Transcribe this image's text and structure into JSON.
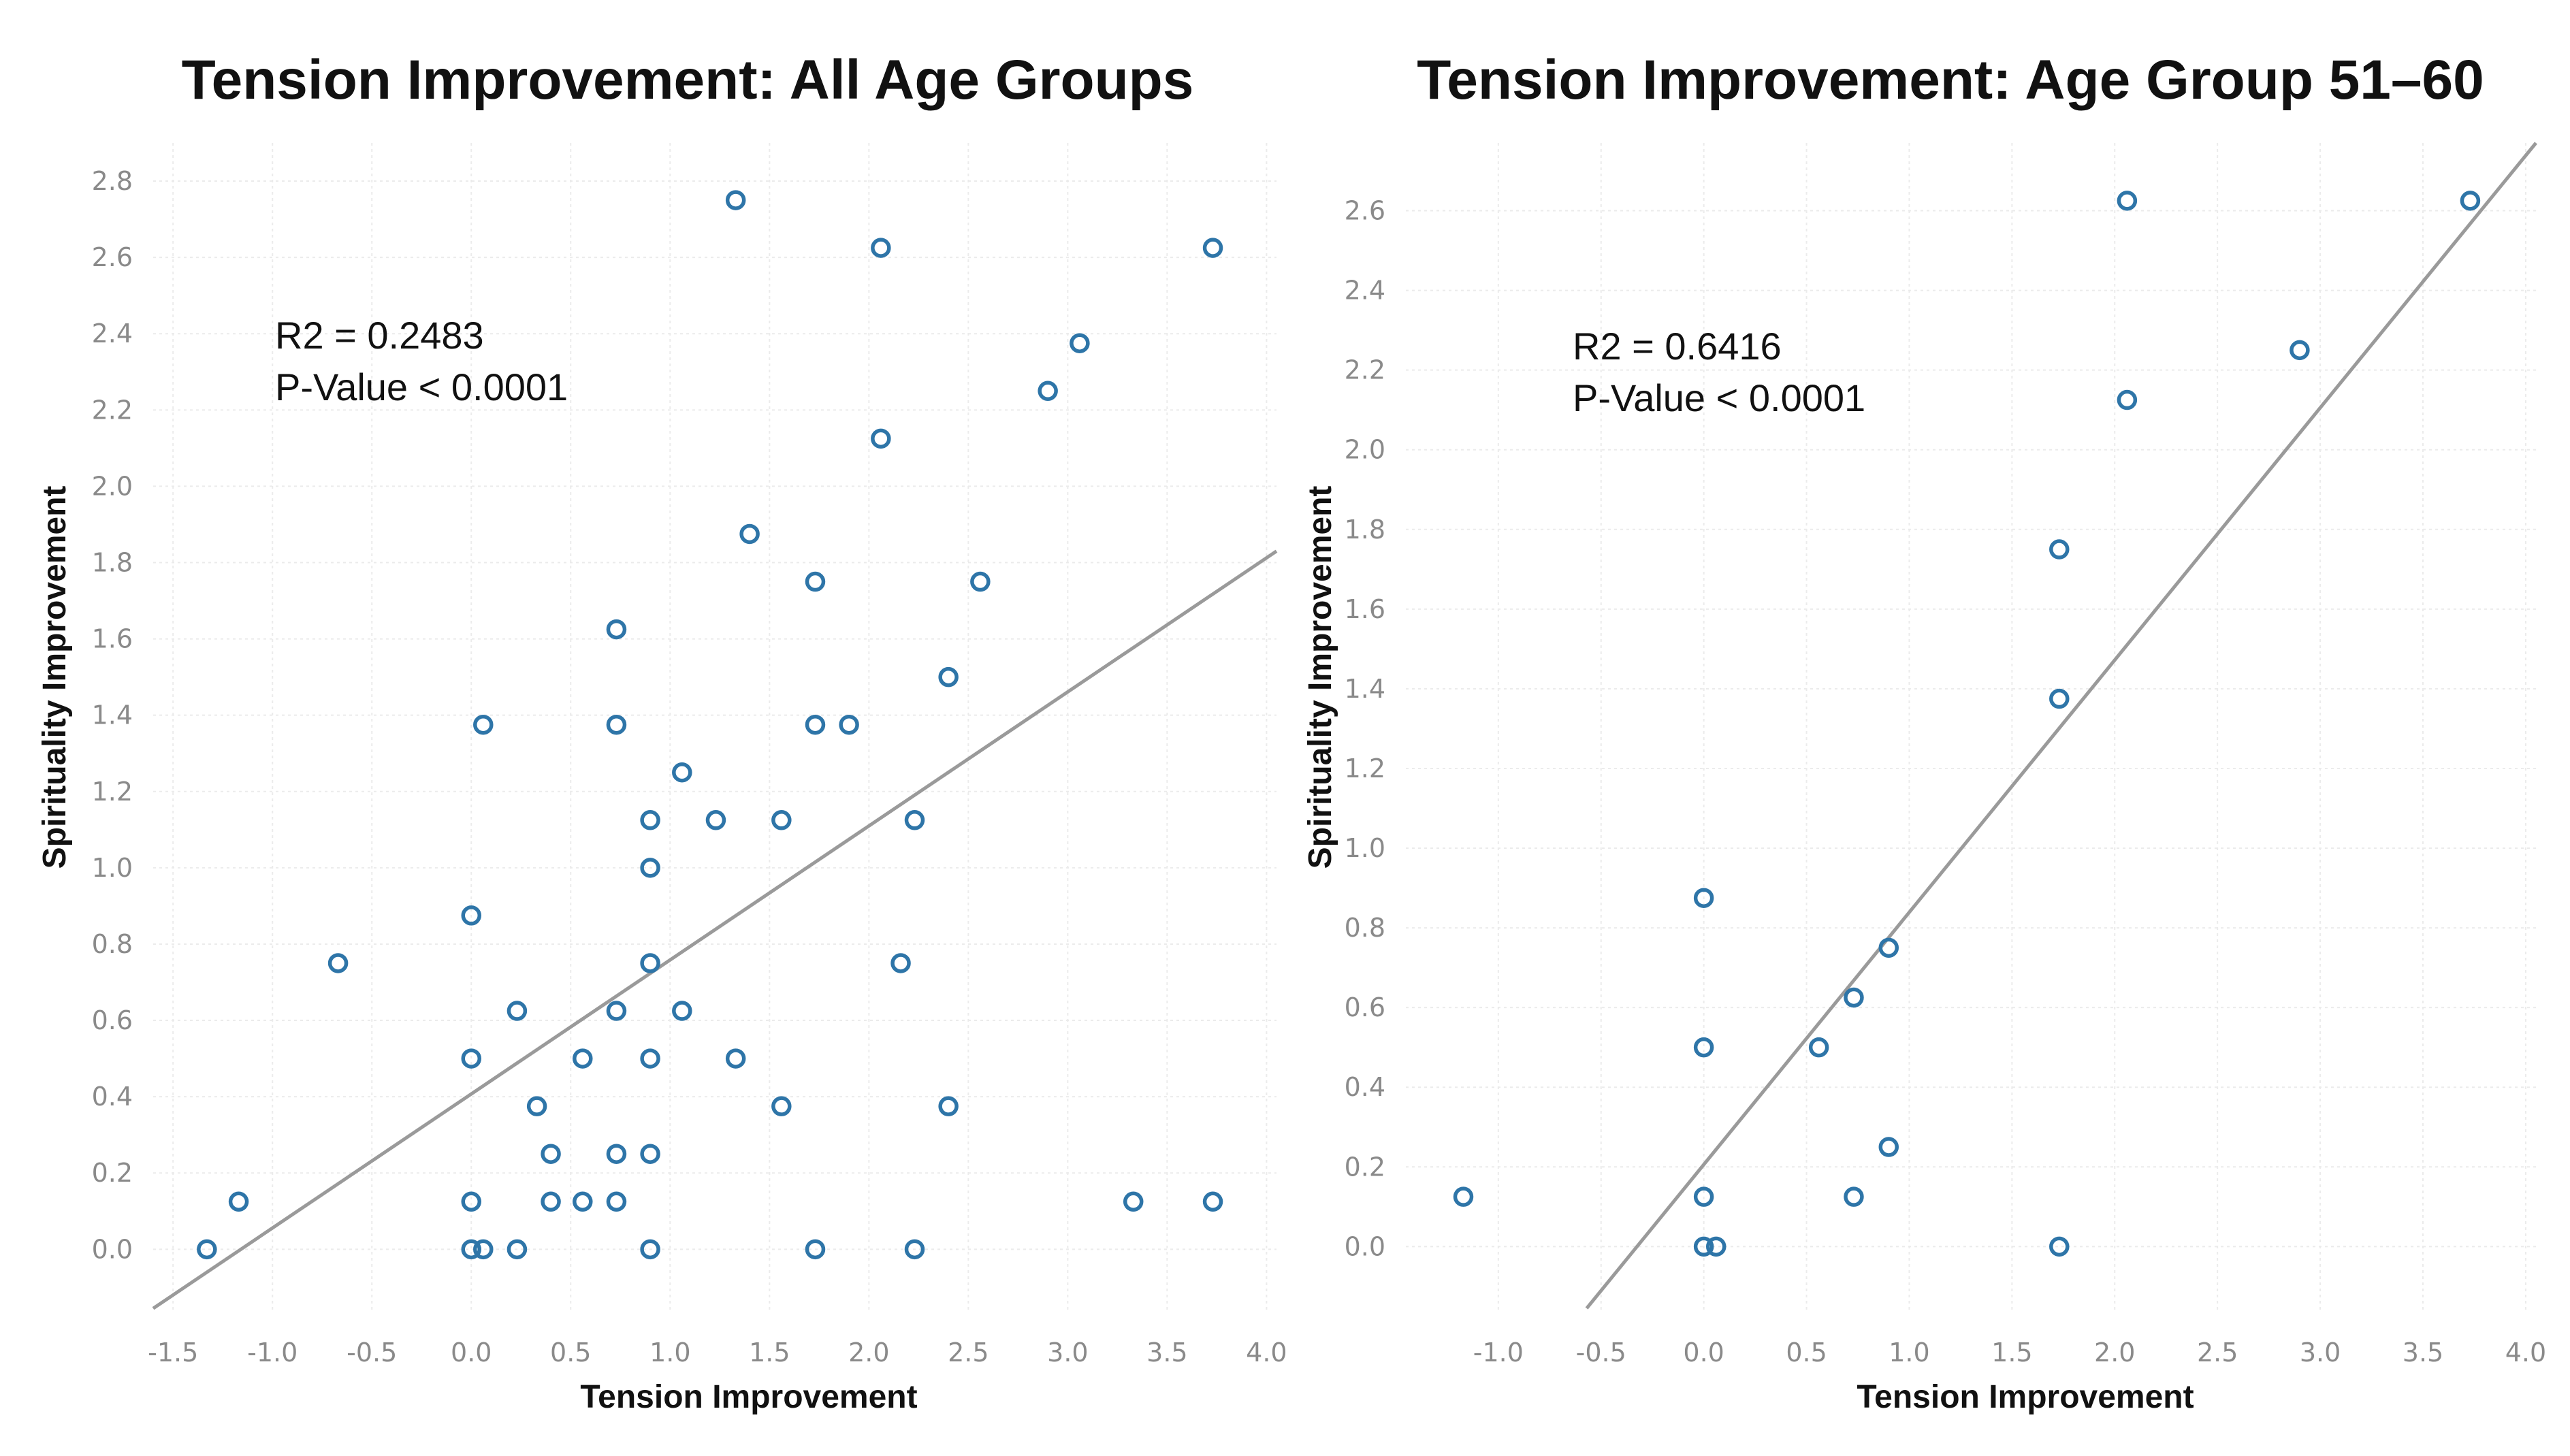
{
  "chart_data": [
    {
      "type": "scatter",
      "id": "all-ages",
      "title": "Tension Improvement: All Age Groups",
      "xlabel": "Tension Improvement",
      "ylabel": "Spirituality Improvement",
      "xlim": [
        -1.6,
        4.05
      ],
      "ylim": [
        -0.16,
        2.9
      ],
      "xticks": [
        -1.5,
        -1.0,
        -0.5,
        0.0,
        0.5,
        1.0,
        1.5,
        2.0,
        2.5,
        3.0,
        3.5,
        4.0
      ],
      "xtick_labels": [
        "-1.5",
        "-1.0",
        "-0.5",
        "0.0",
        "0.5",
        "1.0",
        "1.5",
        "2.0",
        "2.5",
        "3.0",
        "3.5",
        "4.0"
      ],
      "yticks": [
        0.0,
        0.2,
        0.4,
        0.6,
        0.8,
        1.0,
        1.2,
        1.4,
        1.6,
        1.8,
        2.0,
        2.2,
        2.4,
        2.6,
        2.8
      ],
      "ytick_labels": [
        "0.0",
        "0.2",
        "0.4",
        "0.6",
        "0.8",
        "1.0",
        "1.2",
        "1.4",
        "1.6",
        "1.8",
        "2.0",
        "2.2",
        "2.4",
        "2.6",
        "2.8"
      ],
      "grid": true,
      "annotation": {
        "r2_label": "R2 = 0.2483",
        "p_label": "P-Value < 0.0001"
      },
      "fit_line": {
        "x": [
          -1.6,
          4.05
        ],
        "y": [
          -0.155,
          1.83
        ]
      },
      "points": [
        [
          -1.33,
          0.0
        ],
        [
          -1.17,
          0.125
        ],
        [
          -0.67,
          0.75
        ],
        [
          0.0,
          0.0
        ],
        [
          0.0,
          0.125
        ],
        [
          0.0,
          0.5
        ],
        [
          0.0,
          0.875
        ],
        [
          0.06,
          0.0
        ],
        [
          0.06,
          1.375
        ],
        [
          0.23,
          0.0
        ],
        [
          0.23,
          0.625
        ],
        [
          0.33,
          0.375
        ],
        [
          0.4,
          0.125
        ],
        [
          0.4,
          0.25
        ],
        [
          0.56,
          0.125
        ],
        [
          0.56,
          0.5
        ],
        [
          0.73,
          0.125
        ],
        [
          0.73,
          0.25
        ],
        [
          0.73,
          0.625
        ],
        [
          0.73,
          1.375
        ],
        [
          0.73,
          1.625
        ],
        [
          0.9,
          0.0
        ],
        [
          0.9,
          0.25
        ],
        [
          0.9,
          0.5
        ],
        [
          0.9,
          0.75
        ],
        [
          0.9,
          1.0
        ],
        [
          0.9,
          1.125
        ],
        [
          1.06,
          0.625
        ],
        [
          1.06,
          1.25
        ],
        [
          1.23,
          1.125
        ],
        [
          1.33,
          0.5
        ],
        [
          1.33,
          2.75
        ],
        [
          1.4,
          1.875
        ],
        [
          1.56,
          0.375
        ],
        [
          1.56,
          1.125
        ],
        [
          1.73,
          0.0
        ],
        [
          1.73,
          1.375
        ],
        [
          1.73,
          1.75
        ],
        [
          1.9,
          1.375
        ],
        [
          2.06,
          2.125
        ],
        [
          2.06,
          2.625
        ],
        [
          2.16,
          0.75
        ],
        [
          2.23,
          0.0
        ],
        [
          2.23,
          1.125
        ],
        [
          2.4,
          0.375
        ],
        [
          2.4,
          1.5
        ],
        [
          2.56,
          1.75
        ],
        [
          2.9,
          2.25
        ],
        [
          3.06,
          2.375
        ],
        [
          3.33,
          0.125
        ],
        [
          3.73,
          0.125
        ],
        [
          3.73,
          2.625
        ]
      ]
    },
    {
      "type": "scatter",
      "id": "age-51-60",
      "title": "Tension Improvement: Age Group 51–60",
      "xlabel": "Tension Improvement",
      "ylabel": "Spirituality Improvement",
      "xlim": [
        -1.45,
        4.05
      ],
      "ylim": [
        -0.16,
        2.77
      ],
      "xticks": [
        -1.0,
        -0.5,
        0.0,
        0.5,
        1.0,
        1.5,
        2.0,
        2.5,
        3.0,
        3.5,
        4.0
      ],
      "xtick_labels": [
        "-1.0",
        "-0.5",
        "0.0",
        "0.5",
        "1.0",
        "1.5",
        "2.0",
        "2.5",
        "3.0",
        "3.5",
        "4.0"
      ],
      "yticks": [
        0.0,
        0.2,
        0.4,
        0.6,
        0.8,
        1.0,
        1.2,
        1.4,
        1.6,
        1.8,
        2.0,
        2.2,
        2.4,
        2.6
      ],
      "ytick_labels": [
        "0.0",
        "0.2",
        "0.4",
        "0.6",
        "0.8",
        "1.0",
        "1.2",
        "1.4",
        "1.6",
        "1.8",
        "2.0",
        "2.2",
        "2.4",
        "2.6"
      ],
      "grid": true,
      "annotation": {
        "r2_label": "R2 = 0.6416",
        "p_label": "P-Value < 0.0001"
      },
      "fit_line": {
        "x": [
          -0.57,
          4.05
        ],
        "y": [
          -0.155,
          2.77
        ]
      },
      "points": [
        [
          -1.17,
          0.125
        ],
        [
          0.0,
          0.0
        ],
        [
          0.0,
          0.125
        ],
        [
          0.0,
          0.5
        ],
        [
          0.0,
          0.875
        ],
        [
          0.06,
          0.0
        ],
        [
          0.56,
          0.5
        ],
        [
          0.73,
          0.125
        ],
        [
          0.73,
          0.625
        ],
        [
          0.9,
          0.25
        ],
        [
          0.9,
          0.75
        ],
        [
          1.73,
          0.0
        ],
        [
          1.73,
          1.375
        ],
        [
          1.73,
          1.75
        ],
        [
          2.06,
          2.125
        ],
        [
          2.06,
          2.625
        ],
        [
          2.9,
          2.25
        ],
        [
          3.73,
          2.625
        ]
      ]
    }
  ]
}
